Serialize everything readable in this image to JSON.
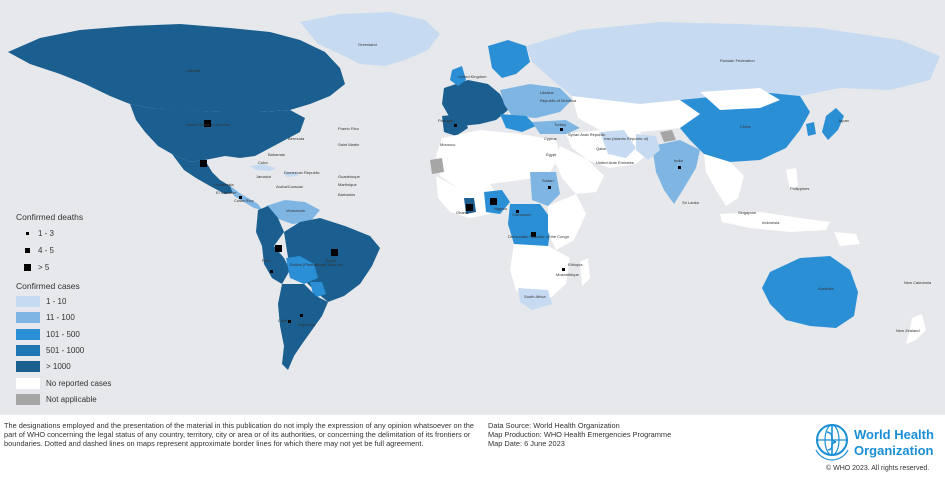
{
  "colors": {
    "ocean": "#e6e8eb",
    "c1_10": "#c6dbf1",
    "c11_100": "#7fb5e3",
    "c101_500": "#2b8fd6",
    "c501_1000": "#1f76b4",
    "c_gt1000": "#1a5f8f",
    "none": "#ffffff",
    "na": "#a6a6a6"
  },
  "legend": {
    "deaths_title": "Confirmed deaths",
    "deaths": [
      {
        "label": "1 - 3",
        "size": 3
      },
      {
        "label": "4 - 5",
        "size": 5
      },
      {
        "label": "> 5",
        "size": 7
      }
    ],
    "cases_title": "Confirmed cases",
    "cases": [
      {
        "label": "1 - 10",
        "color": "#c6dbf1"
      },
      {
        "label": "11 - 100",
        "color": "#7fb5e3"
      },
      {
        "label": "101 - 500",
        "color": "#2b8fd6"
      },
      {
        "label": "501 - 1000",
        "color": "#1f76b4"
      },
      {
        "label": "> 1000",
        "color": "#1a5f8f"
      },
      {
        "label": "No reported cases",
        "color": "#ffffff"
      },
      {
        "label": "Not applicable",
        "color": "#a6a6a6"
      }
    ]
  },
  "map_labels": {
    "greenland": "Greenland",
    "canada": "Canada",
    "usa": "United States of America",
    "bermuda": "Bermuda",
    "bahamas": "Bahamas",
    "cuba": "Cuba",
    "puerto_rico": "Puerto Rico",
    "saint_martin": "Saint Martin",
    "dominican_republic": "Dominican Republic",
    "jamaica": "Jamaica",
    "guadeloupe": "Guadeloupe",
    "martinique": "Martinique",
    "barbados": "Barbados",
    "guatemala": "Guatemala",
    "el_salvador": "El Salvador",
    "costa_rica": "Costa Rica",
    "aruba_curacao": "Aruba/Curacao",
    "venezuela": "Venezuela",
    "peru": "Peru",
    "bolivia": "Bolivia (Plurinational State of)",
    "brazil": "Brazil",
    "chile": "Chile",
    "argentina": "Argentina",
    "russia": "Russian Federation",
    "china": "China",
    "japan": "Japan",
    "india": "India",
    "sri_lanka": "Sri Lanka",
    "philippines": "Philippines",
    "singapore": "Singapore",
    "indonesia": "Indonesia",
    "australia": "Australia",
    "new_zealand": "New Zealand",
    "new_caledonia": "New Caledonia",
    "egypt": "Egypt",
    "sudan": "Sudan",
    "south_africa": "South Africa",
    "ethiopia": "Ethiopia",
    "cyprus": "Cyprus",
    "turkey": "Turkey",
    "united_kingdom": "United Kingdom",
    "ukraine": "Ukraine",
    "moldova": "Republic of Moldova",
    "portugal": "Portugal",
    "qatar": "Qatar",
    "uae": "United Arab Emirates",
    "syria": "Syrian Arab Republic",
    "iran": "Iran (Islamic Republic of)",
    "nigeria": "Nigeria",
    "ghana": "Ghana",
    "cameroon": "Cameroon",
    "drc": "Democratic Republic of the Congo",
    "mozambique": "Mozambique",
    "morocco": "Morocco"
  },
  "footer": {
    "disclaimer": "The designations employed and the presentation of the material in this publication do not imply the expression of any opinion whatsoever on the part of WHO concerning the legal status of any country, territory, city or area or of its authorities, or concerning the delimitation of its frontiers or boundaries. Dotted and dashed lines on maps represent approximate border lines for which there may not yet be full agreement.",
    "data_source": "Data Source: World Health Organization",
    "map_production": "Map Production: WHO Health Emergencies Programme",
    "map_date": "Map Date: 6 June 2023",
    "logo_line1": "World Health",
    "logo_line2": "Organization",
    "copyright": "© WHO 2023. All rights reserved."
  }
}
